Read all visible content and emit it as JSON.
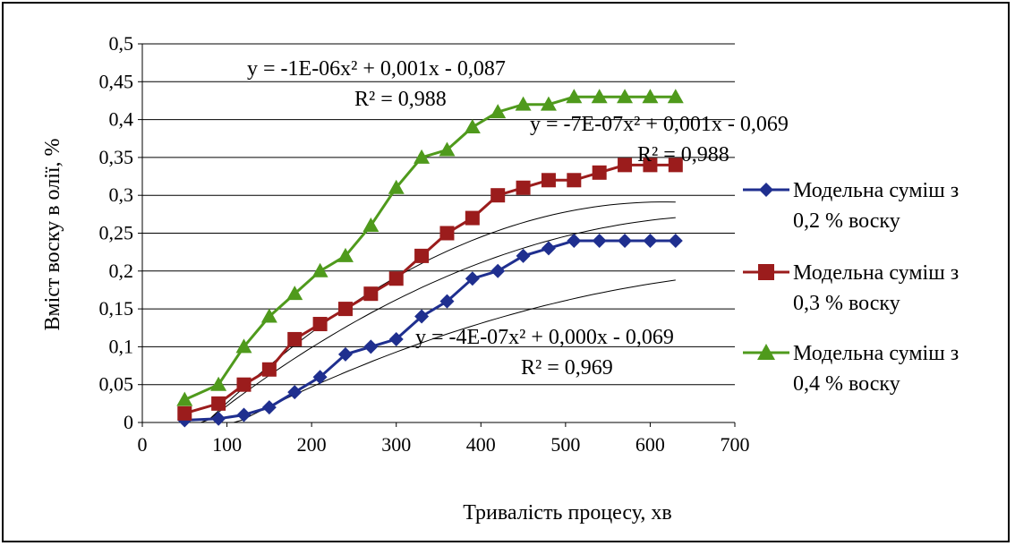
{
  "chart_data": {
    "type": "scatter",
    "title": "",
    "xlabel": "Тривалість процесу, хв",
    "ylabel": "Вміст воску в олії, %",
    "xlim": [
      0,
      700
    ],
    "ylim": [
      0,
      0.5
    ],
    "x_ticks": [
      "0",
      "100",
      "200",
      "300",
      "400",
      "500",
      "600",
      "700"
    ],
    "y_ticks": [
      "0",
      "0,05",
      "0,1",
      "0,15",
      "0,2",
      "0,25",
      "0,3",
      "0,35",
      "0,4",
      "0,45",
      "0,5"
    ],
    "grid": "horizontal",
    "legend_position": "right",
    "x": [
      50,
      90,
      120,
      150,
      180,
      210,
      240,
      270,
      300,
      330,
      360,
      390,
      420,
      450,
      480,
      510,
      540,
      570,
      600,
      630
    ],
    "series": [
      {
        "name_line1": "Модельна суміш з",
        "name_line2": "0,2 % воску",
        "marker": "diamond",
        "color": "#1f2f8f",
        "values": [
          0.003,
          0.005,
          0.01,
          0.02,
          0.04,
          0.06,
          0.09,
          0.1,
          0.11,
          0.14,
          0.16,
          0.19,
          0.2,
          0.22,
          0.23,
          0.24,
          0.24,
          0.24,
          0.24,
          0.24
        ],
        "trend": {
          "equation": "y = -4E-07x² + 0,000x - 0,069",
          "r2": "R² = 0,969",
          "a": -4e-07,
          "b": 0.00066,
          "c": -0.069
        }
      },
      {
        "name_line1": "Модельна суміш з",
        "name_line2": "0,3 % воску",
        "marker": "square",
        "color": "#9b1c1c",
        "values": [
          0.012,
          0.025,
          0.05,
          0.07,
          0.11,
          0.13,
          0.15,
          0.17,
          0.19,
          0.22,
          0.25,
          0.27,
          0.3,
          0.31,
          0.32,
          0.32,
          0.33,
          0.34,
          0.34,
          0.34
        ],
        "trend": {
          "equation": "y = -7E-07x² + 0,001x - 0,069",
          "r2": "R² = 0,988",
          "a": -7e-07,
          "b": 0.00098,
          "c": -0.069
        }
      },
      {
        "name_line1": "Модельна суміш з",
        "name_line2": "0,4 % воску",
        "marker": "triangle",
        "color": "#4f9a1c",
        "values": [
          0.03,
          0.05,
          0.1,
          0.14,
          0.17,
          0.2,
          0.22,
          0.26,
          0.31,
          0.35,
          0.36,
          0.39,
          0.41,
          0.42,
          0.42,
          0.43,
          0.43,
          0.43,
          0.43,
          0.43
        ],
        "trend": {
          "equation": "y = -1E-06x² + 0,001x - 0,087",
          "r2": "R² = 0,988",
          "a": -1e-06,
          "b": 0.00123,
          "c": -0.087
        }
      }
    ]
  }
}
